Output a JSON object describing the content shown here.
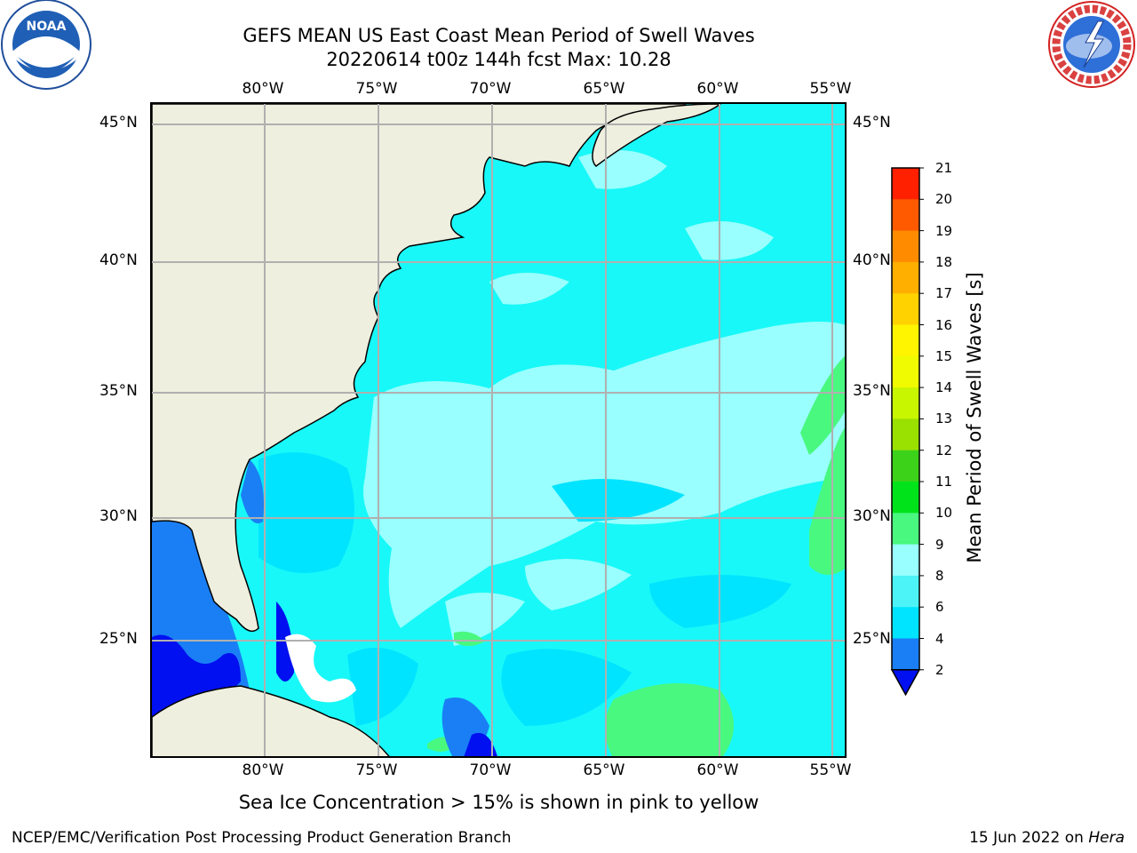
{
  "title": {
    "line1": "GEFS MEAN US East Coast Mean Period of Swell Waves",
    "line2": "20220614 t00z 144h fcst   Max: 10.28"
  },
  "map": {
    "lon_labels": [
      "80°W",
      "75°W",
      "70°W",
      "65°W",
      "60°W",
      "55°W"
    ],
    "lat_labels": [
      "45°N",
      "40°N",
      "35°N",
      "30°N",
      "25°N"
    ],
    "land_color": "#efefdf",
    "ocean_base_color": "#18f8f8"
  },
  "colorbar": {
    "title": "Mean Period of Swell Waves [s]",
    "levels": [
      2,
      4,
      6,
      8,
      9,
      10,
      11,
      12,
      13,
      14,
      15,
      16,
      17,
      18,
      19,
      20,
      21
    ],
    "colors": [
      "#1a7ff5",
      "#00e4ff",
      "#4cf4f8",
      "#99ffff",
      "#49f87f",
      "#00e31b",
      "#3cd21a",
      "#9ae000",
      "#c8f500",
      "#f0fa00",
      "#fff500",
      "#ffd200",
      "#ffaf00",
      "#ff8c00",
      "#ff5a00",
      "#ff2000"
    ],
    "under_color": "#0010f0",
    "labels": [
      "2",
      "4",
      "6",
      "8",
      "9",
      "10",
      "11",
      "12",
      "13",
      "14",
      "15",
      "16",
      "17",
      "18",
      "19",
      "20",
      "21"
    ]
  },
  "footer": {
    "note": "Sea Ice Concentration > 15% is shown in pink to yellow",
    "credit": "NCEP/EMC/Verification Post Processing Product Generation Branch",
    "date_prefix": "15 Jun 2022 on ",
    "machine": "Hera"
  },
  "logos": {
    "noaa": "NOAA",
    "noaa_ring": "NATIONAL OCEANIC AND ATMOSPHERIC ADMINISTRATION · U.S. DEPARTMENT OF COMMERCE",
    "nws_ring": "NATIONAL WEATHER SERVICE"
  }
}
